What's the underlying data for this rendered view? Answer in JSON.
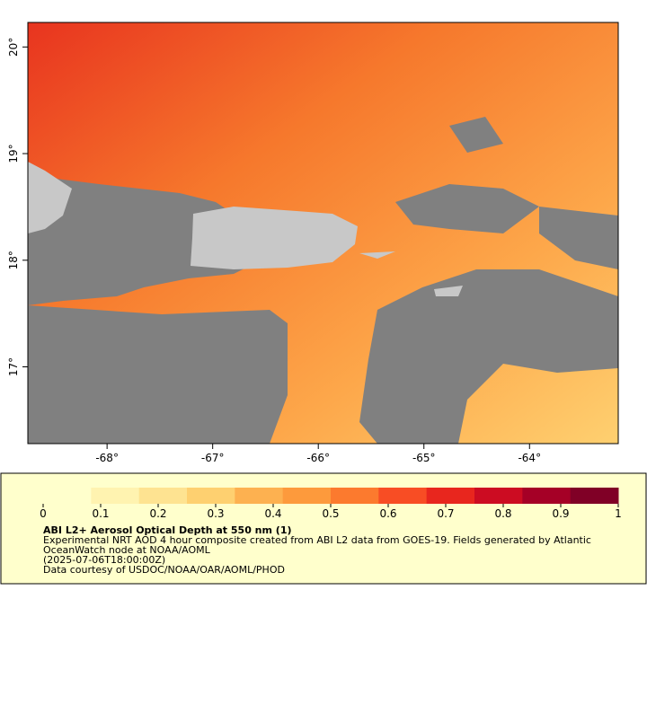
{
  "map": {
    "xlim": [
      -68.75,
      -63.16
    ],
    "ylim": [
      16.28,
      20.23
    ],
    "xticks": [
      {
        "value": -68,
        "label": "-68°"
      },
      {
        "value": -67,
        "label": "-67°"
      },
      {
        "value": -66,
        "label": "-66°"
      },
      {
        "value": -65,
        "label": "-65°"
      },
      {
        "value": -64,
        "label": "-64°"
      }
    ],
    "yticks": [
      {
        "value": 17,
        "label": "17°"
      },
      {
        "value": 18,
        "label": "18°"
      },
      {
        "value": 19,
        "label": "19°"
      },
      {
        "value": 20,
        "label": "20°"
      }
    ]
  },
  "legend": {
    "title": "ABI L2+ Aerosol Optical Depth at 550 nm (1)",
    "lines": [
      "Experimental NRT AOD 4 hour composite created from ABI L2 data from GOES-19. Fields generated by Atlantic",
      "OceanWatch node at NOAA/AOML",
      "(2025-07-06T18:00:00Z)",
      "Data courtesy of USDOC/NOAA/OAR/AOML/PHOD"
    ],
    "colorbar": {
      "range": [
        0,
        1
      ],
      "ticks": [
        0,
        0.1,
        0.2,
        0.3,
        0.4,
        0.5,
        0.6,
        0.7,
        0.8,
        0.9,
        1
      ],
      "colors": [
        "#ffffcc",
        "#fff3b0",
        "#fee391",
        "#fed070",
        "#fdb150",
        "#fd9a3c",
        "#fc7a2e",
        "#f84d24",
        "#e8261e",
        "#cc0c22",
        "#a50026",
        "#800026"
      ]
    }
  }
}
